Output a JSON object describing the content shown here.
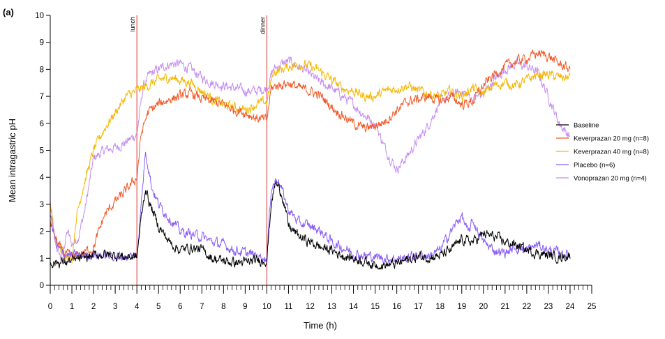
{
  "panel_label": "(a)",
  "chart_data": {
    "type": "line",
    "xlabel": "Time (h)",
    "ylabel": "Mean intragastric pH",
    "xlim": [
      0,
      25
    ],
    "ylim": [
      0,
      10
    ],
    "xticks": [
      "0",
      "1",
      "2",
      "3",
      "4",
      "5",
      "6",
      "7",
      "8",
      "9",
      "10",
      "11",
      "12",
      "13",
      "14",
      "15",
      "16",
      "17",
      "18",
      "19",
      "20",
      "21",
      "22",
      "23",
      "24",
      "25"
    ],
    "yticks": [
      "0",
      "1",
      "2",
      "3",
      "4",
      "5",
      "6",
      "7",
      "8",
      "9",
      "10"
    ],
    "grid": false,
    "legend_position": "right",
    "annotations": [
      {
        "label": "lunch",
        "x": 4,
        "color": "#e03030"
      },
      {
        "label": "dinner",
        "x": 10,
        "color": "#e03030"
      }
    ],
    "series": [
      {
        "name": "Baseline",
        "color": "#000000",
        "x": [
          0,
          0.5,
          1,
          1.5,
          2,
          2.5,
          3,
          3.5,
          4,
          4.2,
          4.4,
          4.6,
          5,
          5.5,
          6,
          6.5,
          7,
          7.5,
          8,
          8.5,
          9,
          9.5,
          10,
          10.2,
          10.4,
          10.7,
          11,
          11.5,
          12,
          12.5,
          13,
          13.5,
          14,
          14.5,
          15,
          15.5,
          16,
          16.5,
          17,
          17.5,
          18,
          18.5,
          19,
          19.5,
          20,
          20.5,
          21,
          21.5,
          22,
          22.5,
          23,
          23.5,
          24
        ],
        "y": [
          0.85,
          0.85,
          0.9,
          1.0,
          1.1,
          1.15,
          1.1,
          1.05,
          1.05,
          2.5,
          3.6,
          3.0,
          2.2,
          1.6,
          1.3,
          1.4,
          1.3,
          1.0,
          0.9,
          0.85,
          0.85,
          0.9,
          0.95,
          3.0,
          3.8,
          3.4,
          2.2,
          1.8,
          1.6,
          1.4,
          1.3,
          1.1,
          1.0,
          0.9,
          0.75,
          0.75,
          0.8,
          0.95,
          1.05,
          1.05,
          1.1,
          1.3,
          1.7,
          1.6,
          1.9,
          1.8,
          1.6,
          1.5,
          1.3,
          1.2,
          1.1,
          1.05,
          1.1
        ]
      },
      {
        "name": "Keverprazan 20 mg (n=8)",
        "color": "#f05a28",
        "x": [
          0,
          0.2,
          0.5,
          1,
          1.5,
          2,
          2.5,
          3,
          3.5,
          4,
          4.2,
          4.5,
          5,
          5.5,
          6,
          6.5,
          7,
          7.5,
          8,
          8.5,
          9,
          9.5,
          10,
          10.2,
          10.5,
          11,
          11.5,
          12,
          12.5,
          13,
          13.5,
          14,
          14.5,
          15,
          15.5,
          16,
          16.5,
          17,
          17.5,
          18,
          18.5,
          19,
          19.5,
          20,
          20.5,
          21,
          21.5,
          22,
          22.5,
          23,
          23.5,
          24
        ],
        "y": [
          2.4,
          1.8,
          1.3,
          1.0,
          1.2,
          1.4,
          2.6,
          3.1,
          3.5,
          4.0,
          5.6,
          6.4,
          6.7,
          6.9,
          7.0,
          7.1,
          6.9,
          6.8,
          6.7,
          6.5,
          6.4,
          6.2,
          6.1,
          7.3,
          7.4,
          7.5,
          7.3,
          7.2,
          7.0,
          6.6,
          6.3,
          6.0,
          5.8,
          5.9,
          6.1,
          6.5,
          6.8,
          6.9,
          7.0,
          6.8,
          7.0,
          6.7,
          6.8,
          7.4,
          7.8,
          8.1,
          8.3,
          8.4,
          8.6,
          8.5,
          8.2,
          8.0
        ]
      },
      {
        "name": "Keverprazan 40 mg (n=8)",
        "color": "#f5b800",
        "x": [
          0,
          0.2,
          0.5,
          1,
          1.2,
          1.5,
          2,
          2.5,
          3,
          3.5,
          4,
          4.5,
          5,
          5.5,
          6,
          6.5,
          7,
          7.5,
          8,
          8.5,
          9,
          9.5,
          10,
          10.3,
          10.7,
          11,
          11.5,
          12,
          12.5,
          13,
          13.5,
          14,
          14.5,
          15,
          15.5,
          16,
          16.5,
          17,
          17.5,
          18,
          18.5,
          19,
          19.5,
          20,
          20.5,
          21,
          21.5,
          22,
          22.5,
          23,
          23.5,
          24
        ],
        "y": [
          3.0,
          1.8,
          1.3,
          1.0,
          2.5,
          3.6,
          5.0,
          5.8,
          6.4,
          7.0,
          7.2,
          7.4,
          7.6,
          7.7,
          7.6,
          7.5,
          7.2,
          6.9,
          6.7,
          6.6,
          6.5,
          6.7,
          6.8,
          7.9,
          8.0,
          8.1,
          8.2,
          8.1,
          7.9,
          7.6,
          7.3,
          7.2,
          7.0,
          7.0,
          7.2,
          7.3,
          7.4,
          7.2,
          7.1,
          7.0,
          7.2,
          7.0,
          7.3,
          7.1,
          7.4,
          7.5,
          7.4,
          7.6,
          7.8,
          7.8,
          7.7,
          7.7
        ]
      },
      {
        "name": "Placebo (n=6)",
        "color": "#8a5cf5",
        "x": [
          0,
          0.3,
          0.6,
          1,
          1.5,
          2,
          2.5,
          3,
          3.5,
          4,
          4.2,
          4.4,
          4.7,
          5,
          5.5,
          6,
          6.5,
          7,
          7.5,
          8,
          8.5,
          9,
          9.5,
          10,
          10.2,
          10.5,
          11,
          11.5,
          12,
          12.5,
          13,
          13.5,
          14,
          14.5,
          15,
          15.5,
          16,
          16.5,
          17,
          17.5,
          18,
          18.5,
          19,
          19.3,
          19.5,
          20,
          20.5,
          21,
          21.5,
          22,
          22.5,
          23,
          23.5,
          24
        ],
        "y": [
          2.6,
          1.4,
          1.2,
          1.1,
          1.1,
          1.15,
          1.1,
          1.1,
          1.05,
          1.1,
          3.0,
          5.0,
          3.6,
          3.0,
          2.5,
          2.0,
          1.9,
          1.8,
          1.6,
          1.5,
          1.3,
          1.2,
          1.1,
          1.0,
          3.6,
          4.0,
          2.8,
          2.3,
          2.2,
          2.0,
          1.6,
          1.4,
          1.2,
          1.1,
          1.05,
          1.0,
          1.0,
          1.0,
          1.15,
          1.1,
          1.3,
          2.0,
          2.6,
          1.9,
          2.4,
          1.6,
          1.3,
          1.2,
          1.4,
          1.3,
          1.5,
          1.3,
          1.2,
          1.15
        ]
      },
      {
        "name": "Vonoprazan 20 mg (n=4)",
        "color": "#c58ef0",
        "x": [
          0,
          0.2,
          0.5,
          0.8,
          1,
          1.3,
          1.6,
          2,
          2.5,
          3,
          3.5,
          4,
          4.3,
          4.6,
          5,
          5.5,
          6,
          6.5,
          7,
          7.5,
          8,
          8.5,
          9,
          9.5,
          10,
          10.3,
          10.7,
          11,
          11.5,
          12,
          12.5,
          13,
          13.5,
          14,
          14.5,
          15,
          15.5,
          16,
          16.5,
          17,
          17.5,
          18,
          18.5,
          19,
          19.5,
          20,
          20.5,
          21,
          21.5,
          22,
          22.5,
          23,
          23.5,
          24
        ],
        "y": [
          3.1,
          1.6,
          1.0,
          2.0,
          1.5,
          1.8,
          2.8,
          4.7,
          5.0,
          5.1,
          5.3,
          5.6,
          7.4,
          7.8,
          8.0,
          8.2,
          8.2,
          8.0,
          7.7,
          7.5,
          7.4,
          7.3,
          7.2,
          7.2,
          7.3,
          8.0,
          8.2,
          8.3,
          8.1,
          7.8,
          7.5,
          7.3,
          7.0,
          6.7,
          6.3,
          6.0,
          5.0,
          4.3,
          4.8,
          5.4,
          6.0,
          6.8,
          7.0,
          7.2,
          6.9,
          7.1,
          7.6,
          8.0,
          8.2,
          8.1,
          7.9,
          7.0,
          6.0,
          5.5
        ]
      }
    ]
  }
}
